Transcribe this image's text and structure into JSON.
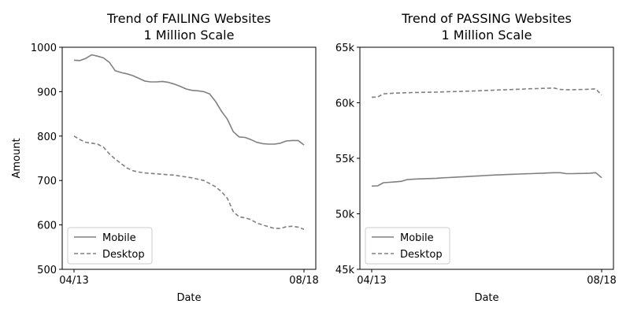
{
  "chart_data": [
    {
      "type": "line",
      "title": "Trend of FAILING Websites",
      "subtitle": "1 Million Scale",
      "xlabel": "Date",
      "ylabel": "Amount",
      "x_tick_labels": [
        "04/13",
        "08/18"
      ],
      "y_ticks": [
        500,
        600,
        700,
        800,
        900,
        1000
      ],
      "y_tick_labels": [
        "500",
        "600",
        "700",
        "800",
        "900",
        "1000"
      ],
      "ylim": [
        500,
        1000
      ],
      "legend_position": "lower-left",
      "grid": false,
      "colors": {
        "line": "#808080"
      },
      "series": [
        {
          "name": "Mobile",
          "style": "solid",
          "values": [
            971,
            970,
            975,
            983,
            980,
            976,
            966,
            947,
            943,
            940,
            936,
            930,
            924,
            922,
            922,
            923,
            921,
            917,
            912,
            906,
            903,
            902,
            900,
            895,
            878,
            856,
            838,
            810,
            798,
            797,
            792,
            786,
            783,
            782,
            782,
            784,
            789,
            790,
            790,
            780
          ]
        },
        {
          "name": "Desktop",
          "style": "dashed",
          "values": [
            800,
            792,
            786,
            784,
            782,
            775,
            760,
            748,
            738,
            728,
            722,
            719,
            717,
            716,
            715,
            714,
            713,
            712,
            710,
            708,
            706,
            703,
            700,
            693,
            686,
            675,
            660,
            630,
            618,
            616,
            612,
            604,
            600,
            596,
            592,
            592,
            596,
            597,
            595,
            590
          ]
        }
      ]
    },
    {
      "type": "line",
      "title": "Trend of PASSING Websites",
      "subtitle": "1 Million Scale",
      "xlabel": "Date",
      "ylabel": "",
      "x_tick_labels": [
        "04/13",
        "08/18"
      ],
      "y_ticks": [
        45000,
        50000,
        55000,
        60000,
        65000
      ],
      "y_tick_labels": [
        "45k",
        "50k",
        "55k",
        "60k",
        "65k"
      ],
      "ylim": [
        45000,
        65000
      ],
      "legend_position": "lower-left",
      "grid": false,
      "colors": {
        "line": "#808080"
      },
      "series": [
        {
          "name": "Mobile",
          "style": "solid",
          "values": [
            52500,
            52520,
            52800,
            52840,
            52880,
            52920,
            53080,
            53110,
            53140,
            53160,
            53180,
            53200,
            53240,
            53260,
            53290,
            53320,
            53350,
            53380,
            53410,
            53440,
            53470,
            53500,
            53520,
            53540,
            53560,
            53580,
            53600,
            53620,
            53640,
            53660,
            53680,
            53700,
            53700,
            53620,
            53620,
            53630,
            53640,
            53660,
            53700,
            53250
          ]
        },
        {
          "name": "Desktop",
          "style": "dashed",
          "values": [
            60500,
            60520,
            60800,
            60840,
            60870,
            60890,
            60910,
            60920,
            60930,
            60940,
            60950,
            60960,
            60980,
            61000,
            61010,
            61020,
            61040,
            61060,
            61080,
            61100,
            61120,
            61140,
            61160,
            61180,
            61200,
            61220,
            61240,
            61260,
            61280,
            61300,
            61310,
            61320,
            61200,
            61180,
            61180,
            61190,
            61200,
            61220,
            61250,
            60700
          ]
        }
      ]
    }
  ]
}
